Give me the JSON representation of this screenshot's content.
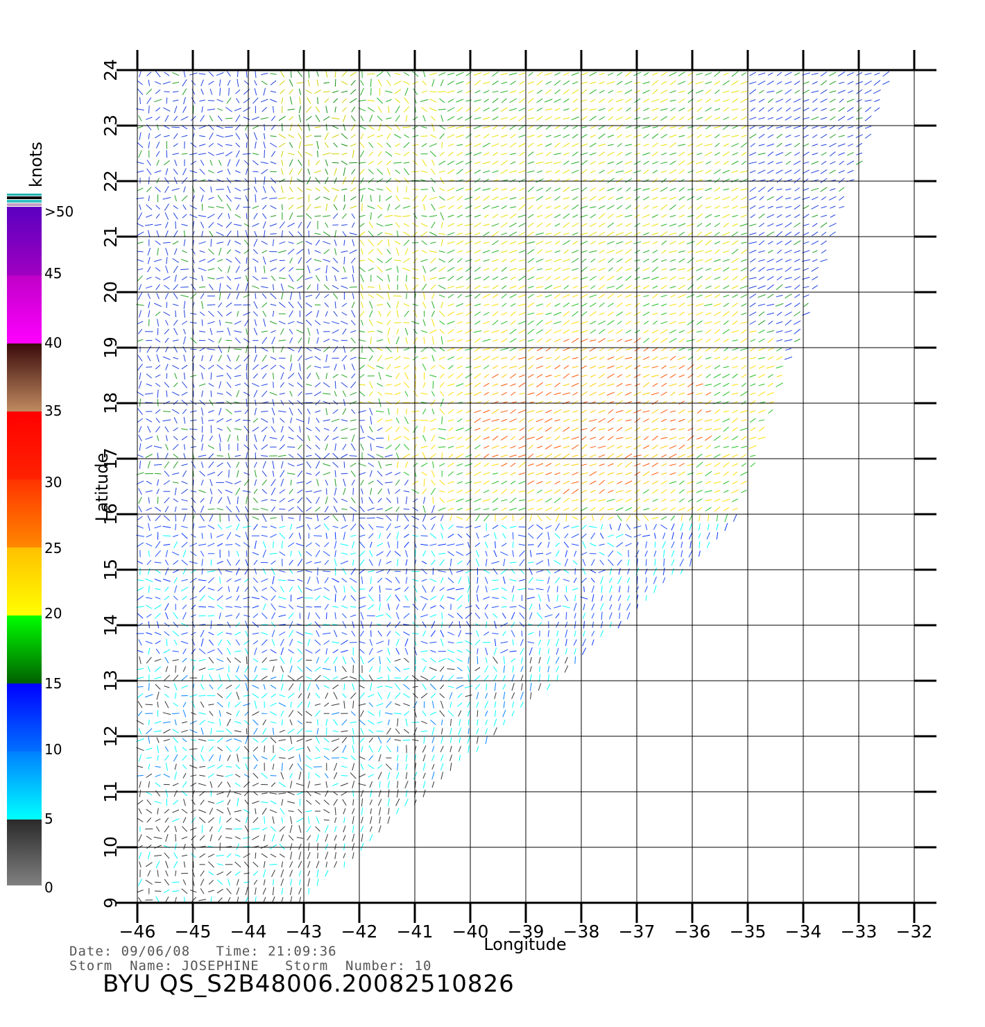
{
  "map": {
    "x_axis": {
      "label": "Longitude",
      "ticks": [
        "−46",
        "−45",
        "−44",
        "−43",
        "−42",
        "−41",
        "−40",
        "−39",
        "−38",
        "−37",
        "−36",
        "−35",
        "−34",
        "−33",
        "−32"
      ],
      "range": [
        -46,
        -32
      ]
    },
    "y_axis": {
      "label": "Latitude",
      "ticks": [
        "9",
        "10",
        "11",
        "12",
        "13",
        "14",
        "15",
        "16",
        "17",
        "18",
        "19",
        "20",
        "21",
        "22",
        "23",
        "24"
      ],
      "range": [
        9,
        24
      ]
    },
    "grid": true
  },
  "colorbar": {
    "unit": "knots",
    "labels": [
      "0",
      "5",
      "10",
      "15",
      "20",
      "25",
      "30",
      "35",
      "40",
      "45",
      ">50"
    ],
    "colors": [
      "#808080",
      "#00ffff",
      "#0000ff",
      "#00ff00",
      "#ffff00",
      "#ff8800",
      "#ff2200",
      "#ff0000",
      "#c08060",
      "#ff00ff",
      "#6a0dd0"
    ]
  },
  "info": {
    "line1": "Date: 09/06/08   Time: 21:09:36",
    "line2": "Storm  Name: JOSEPHINE   Storm  Number: 10"
  },
  "title": "BYU  QS_S2B48006.20082510826"
}
